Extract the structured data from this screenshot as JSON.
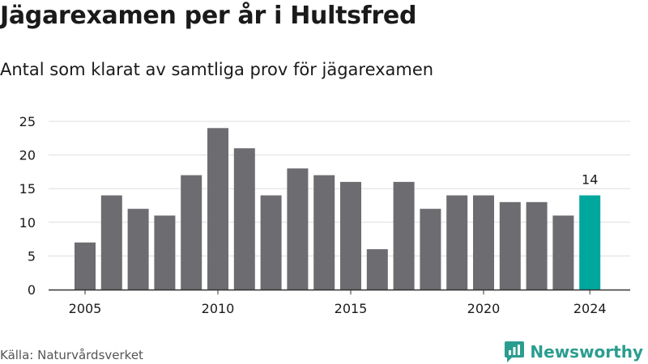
{
  "title": "Jägarexamen per år i Hultsfred",
  "subtitle": "Antal som klarat av samtliga prov för jägarexamen",
  "source": "Källa: Naturvårdsverket",
  "brand": {
    "name": "Newsworthy",
    "icon": "newsworthy-logo-icon",
    "color": "#2a9d8f"
  },
  "colors": {
    "bar": "#6d6c71",
    "highlight": "#00a79d",
    "grid": "#dddddd",
    "axis": "#333333"
  },
  "chart_data": {
    "type": "bar",
    "x": [
      2005,
      2006,
      2007,
      2008,
      2009,
      2010,
      2011,
      2012,
      2013,
      2014,
      2015,
      2016,
      2017,
      2018,
      2019,
      2020,
      2021,
      2022,
      2023,
      2024
    ],
    "values": [
      7,
      14,
      12,
      11,
      17,
      24,
      21,
      14,
      18,
      17,
      16,
      6,
      16,
      12,
      14,
      14,
      13,
      13,
      11,
      14
    ],
    "x_ticks": [
      "2005",
      "2010",
      "2015",
      "2020",
      "2024"
    ],
    "y_ticks": [
      0,
      5,
      10,
      15,
      20,
      25
    ],
    "ylim": [
      0,
      25
    ],
    "grid": "horizontal",
    "highlight": {
      "x": 2024,
      "label": "14"
    }
  }
}
